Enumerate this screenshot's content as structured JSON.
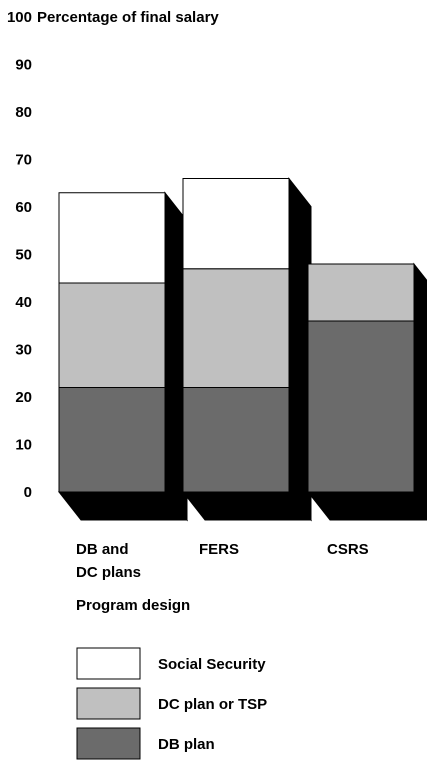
{
  "chart_data": {
    "type": "bar",
    "stacked": true,
    "style": "3d",
    "ylabel": "Percentage of final salary",
    "xlabel": "Program design",
    "ylim": [
      0,
      100
    ],
    "yticks": [
      0,
      10,
      20,
      30,
      40,
      50,
      60,
      70,
      80,
      90,
      100
    ],
    "grid": false,
    "legend_position": "bottom",
    "categories": [
      {
        "line1": "DB and",
        "line2": "DC plans"
      },
      {
        "line1": "FERS",
        "line2": ""
      },
      {
        "line1": "CSRS",
        "line2": ""
      }
    ],
    "series": [
      {
        "name": "DB plan",
        "values": [
          22,
          22,
          36
        ],
        "color": "#6b6b6b"
      },
      {
        "name": "DC plan or TSP",
        "values": [
          22,
          25,
          12
        ],
        "color": "#c0c0c0"
      },
      {
        "name": "Social Security",
        "values": [
          19,
          19,
          0
        ],
        "color": "#ffffff"
      }
    ],
    "legend_order": [
      "Social Security",
      "DC plan or TSP",
      "DB plan"
    ]
  }
}
